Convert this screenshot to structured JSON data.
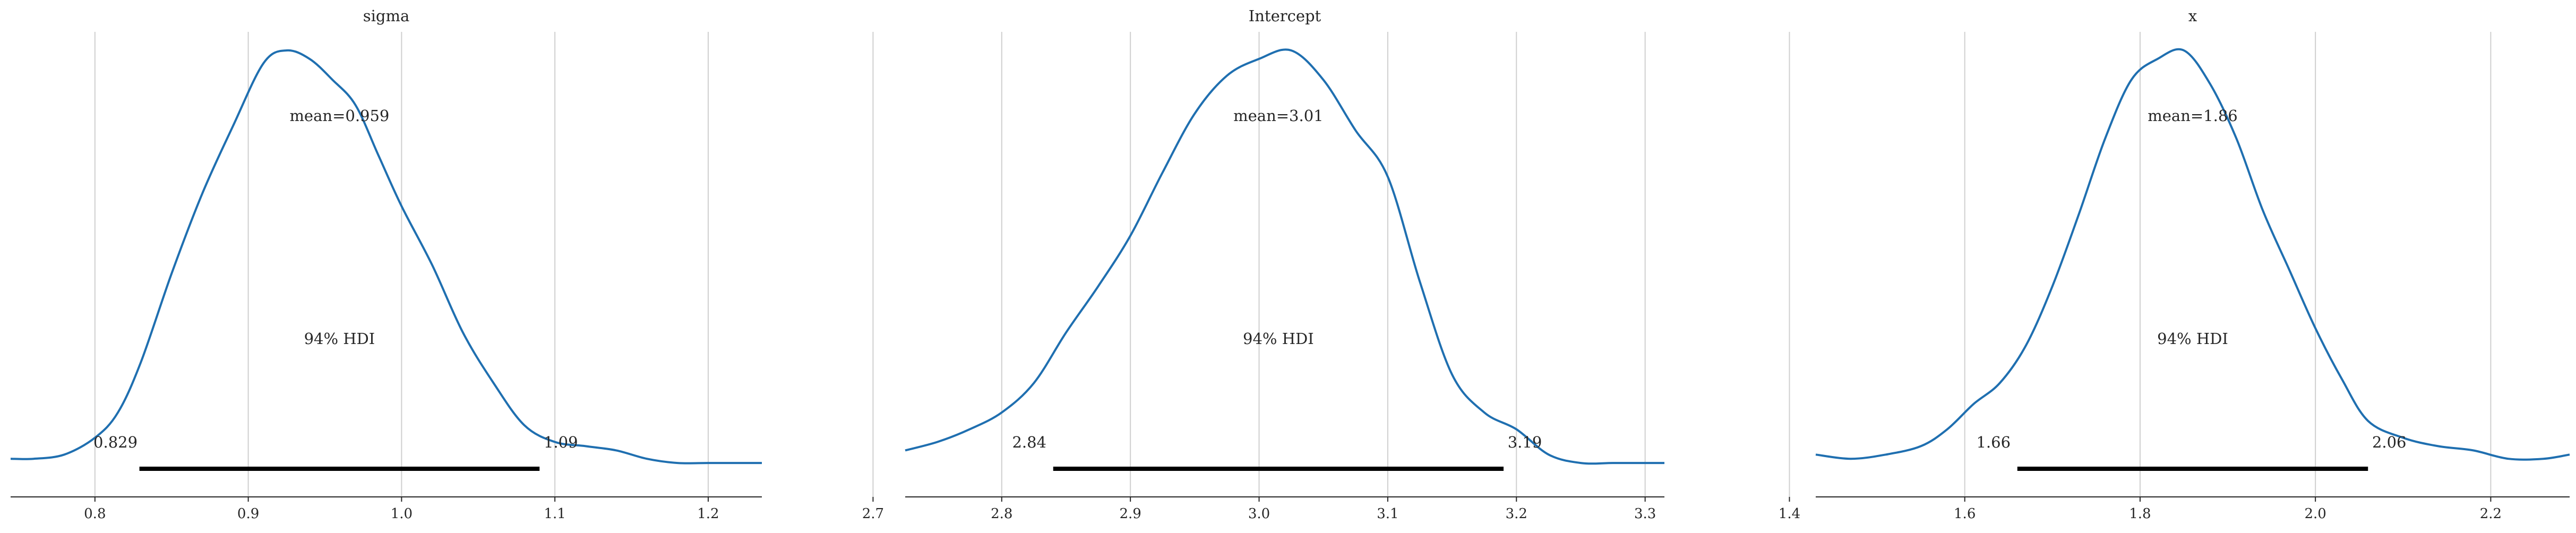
{
  "chart_data": [
    {
      "type": "line",
      "title": "sigma",
      "xlim": [
        0.745,
        1.235
      ],
      "xticks": [
        0.8,
        0.9,
        1.0,
        1.1,
        1.2
      ],
      "xtick_labels": [
        "0.8",
        "0.9",
        "1.0",
        "1.1",
        "1.2"
      ],
      "mean_label": "mean=0.959",
      "hdi_label": "94% HDI",
      "hdi": [
        0.829,
        1.09
      ],
      "hdi_low_label": "0.829",
      "hdi_high_label": "1.09",
      "series": [
        {
          "x": [
            0.745,
            0.76,
            0.78,
            0.8,
            0.815,
            0.83,
            0.85,
            0.87,
            0.89,
            0.91,
            0.925,
            0.94,
            0.955,
            0.97,
            0.985,
            1.0,
            1.02,
            1.04,
            1.06,
            1.08,
            1.1,
            1.12,
            1.14,
            1.16,
            1.18,
            1.2,
            1.22,
            1.235
          ],
          "y": [
            0.03,
            0.03,
            0.04,
            0.08,
            0.14,
            0.26,
            0.47,
            0.66,
            0.82,
            0.97,
            1.0,
            0.98,
            0.93,
            0.87,
            0.75,
            0.63,
            0.49,
            0.33,
            0.21,
            0.11,
            0.07,
            0.06,
            0.05,
            0.03,
            0.02,
            0.02,
            0.02,
            0.02
          ]
        }
      ]
    },
    {
      "type": "line",
      "title": "Intercept",
      "xlim": [
        2.725,
        3.315
      ],
      "xticks": [
        2.7,
        2.8,
        2.9,
        3.0,
        3.1,
        3.2,
        3.3
      ],
      "xtick_labels": [
        "2.7",
        "2.8",
        "2.9",
        "3.0",
        "3.1",
        "3.2",
        "3.3"
      ],
      "mean_label": "mean=3.01",
      "hdi_label": "94% HDI",
      "hdi": [
        2.84,
        3.19
      ],
      "hdi_low_label": "2.84",
      "hdi_high_label": "3.19",
      "series": [
        {
          "x": [
            2.725,
            2.75,
            2.775,
            2.8,
            2.825,
            2.85,
            2.875,
            2.9,
            2.925,
            2.95,
            2.975,
            3.0,
            3.025,
            3.05,
            3.075,
            3.1,
            3.125,
            3.15,
            3.175,
            3.2,
            3.225,
            3.25,
            3.275,
            3.3,
            3.315
          ],
          "y": [
            0.05,
            0.07,
            0.1,
            0.14,
            0.21,
            0.33,
            0.44,
            0.56,
            0.71,
            0.85,
            0.94,
            0.98,
            1.0,
            0.93,
            0.81,
            0.7,
            0.45,
            0.23,
            0.14,
            0.1,
            0.04,
            0.02,
            0.02,
            0.02,
            0.02
          ]
        }
      ]
    },
    {
      "type": "line",
      "title": "x",
      "xlim": [
        1.43,
        2.29
      ],
      "xticks": [
        1.4,
        1.6,
        1.8,
        2.0,
        2.2
      ],
      "xtick_labels": [
        "1.4",
        "1.6",
        "1.8",
        "2.0",
        "2.2"
      ],
      "mean_label": "mean=1.86",
      "hdi_label": "94% HDI",
      "hdi": [
        1.66,
        2.06
      ],
      "hdi_low_label": "1.66",
      "hdi_high_label": "2.06",
      "series": [
        {
          "x": [
            1.43,
            1.47,
            1.51,
            1.55,
            1.58,
            1.61,
            1.64,
            1.67,
            1.7,
            1.73,
            1.76,
            1.79,
            1.82,
            1.85,
            1.88,
            1.91,
            1.94,
            1.97,
            2.0,
            2.03,
            2.06,
            2.1,
            2.14,
            2.18,
            2.22,
            2.26,
            2.29
          ],
          "y": [
            0.04,
            0.03,
            0.04,
            0.06,
            0.1,
            0.16,
            0.21,
            0.3,
            0.44,
            0.61,
            0.79,
            0.93,
            0.98,
            1.0,
            0.92,
            0.79,
            0.62,
            0.48,
            0.34,
            0.22,
            0.12,
            0.08,
            0.06,
            0.05,
            0.03,
            0.03,
            0.04
          ]
        }
      ]
    }
  ],
  "colors": {
    "kde_line": "#1f6fb0",
    "hdi_bar": "#000000",
    "grid": "#cfcfcf"
  }
}
